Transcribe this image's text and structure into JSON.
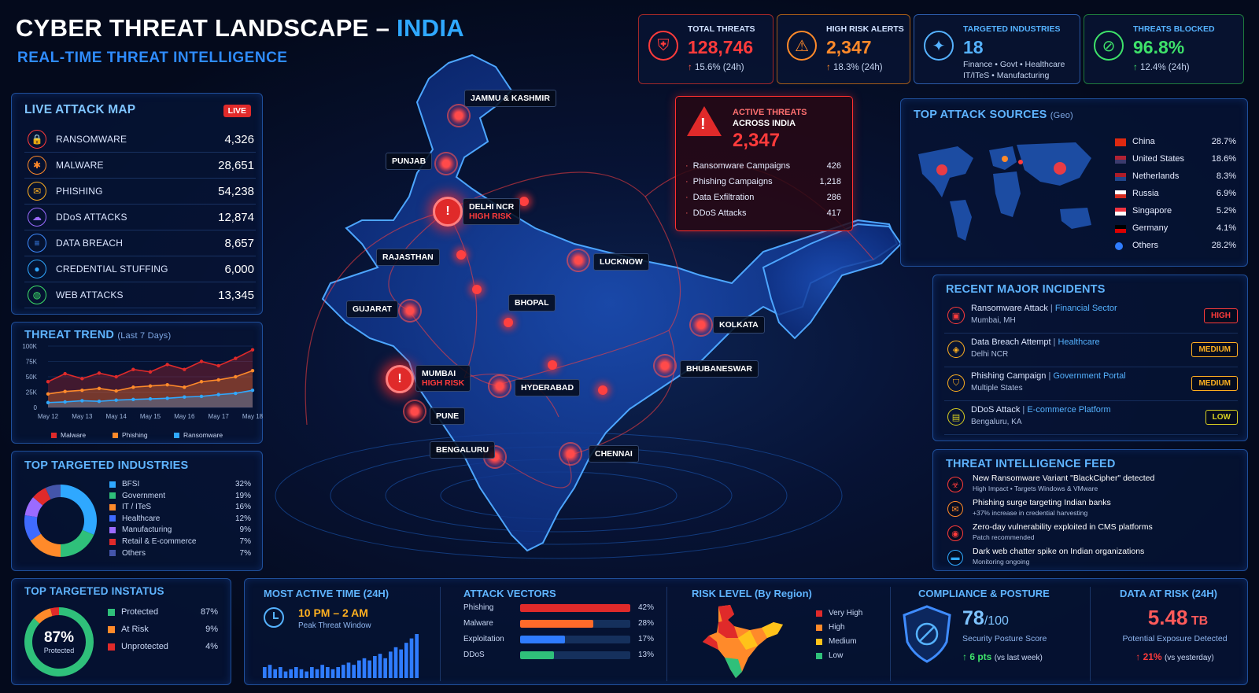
{
  "header": {
    "title": "CYBER THREAT LANDSCAPE –",
    "title_accent": "INDIA",
    "subtitle": "REAL-TIME THREAT INTELLIGENCE"
  },
  "kpis": [
    {
      "label": "TOTAL THREATS",
      "value": "128,746",
      "delta": "15.6% (24h)",
      "color": "#ff3b3b",
      "icon": "shield-alert-icon"
    },
    {
      "label": "HIGH RISK ALERTS",
      "value": "2,347",
      "delta": "18.3% (24h)",
      "color": "#ff8a2a",
      "icon": "alarm-bell-icon"
    },
    {
      "label": "TARGETED INDUSTRIES",
      "value": "18",
      "detail1": "Finance  •  Govt  •  Healthcare",
      "detail2": "IT/ITeS  •  Manufacturing",
      "color": "#55b2ff",
      "icon": "network-users-icon"
    },
    {
      "label": "THREATS BLOCKED",
      "value": "96.8%",
      "delta": "12.4% (24h)",
      "color": "#3ee26a",
      "icon": "blocked-shield-icon"
    }
  ],
  "live_map": {
    "title": "LIVE ATTACK MAP",
    "live": "LIVE",
    "rows": [
      {
        "label": "RANSOMWARE",
        "value": "4,326",
        "icon": "lock-icon",
        "color": "#ff3b3b"
      },
      {
        "label": "MALWARE",
        "value": "28,651",
        "icon": "bug-icon",
        "color": "#ff8a2a"
      },
      {
        "label": "PHISHING",
        "value": "54,238",
        "icon": "envelope-icon",
        "color": "#ffb020"
      },
      {
        "label": "DDoS ATTACKS",
        "value": "12,874",
        "icon": "cloud-icon",
        "color": "#9b6bff"
      },
      {
        "label": "DATA BREACH",
        "value": "8,657",
        "icon": "database-icon",
        "color": "#3f8cff"
      },
      {
        "label": "CREDENTIAL STUFFING",
        "value": "6,000",
        "icon": "user-key-icon",
        "color": "#2fa8ff"
      },
      {
        "label": "WEB ATTACKS",
        "value": "13,345",
        "icon": "globe-icon",
        "color": "#3ee26a"
      }
    ]
  },
  "threat_trend": {
    "title": "THREAT TREND",
    "subtitle": "(Last 7 Days)"
  },
  "chart_data": {
    "type": "area",
    "title": "THREAT TREND (Last 7 Days)",
    "categories": [
      "May 12",
      "May 13",
      "May 14",
      "May 15",
      "May 16",
      "May 17",
      "May 18"
    ],
    "yticks": [
      "0",
      "25K",
      "50K",
      "75K",
      "100K"
    ],
    "ylim": [
      0,
      100000
    ],
    "x": [
      0,
      0.5,
      1,
      1.5,
      2,
      2.5,
      3,
      3.5,
      4,
      4.5,
      5,
      5.5,
      6
    ],
    "series": [
      {
        "name": "Malware",
        "color": "#e02a2a",
        "values": [
          42000,
          55000,
          47000,
          56000,
          50000,
          62000,
          58000,
          70000,
          62000,
          75000,
          68000,
          80000,
          94000
        ]
      },
      {
        "name": "Phishing",
        "color": "#ff8a2a",
        "values": [
          22000,
          26000,
          28000,
          31000,
          27000,
          33000,
          35000,
          37000,
          33000,
          42000,
          45000,
          50000,
          60000
        ]
      },
      {
        "name": "Ransomware",
        "color": "#2fa8ff",
        "values": [
          8000,
          9000,
          11000,
          10000,
          12000,
          13000,
          14000,
          15000,
          17000,
          18000,
          21000,
          23000,
          28000
        ]
      }
    ]
  },
  "industries": {
    "title": "TOP TARGETED INDUSTRIES",
    "items": [
      {
        "label": "BFSI",
        "pct": "32%",
        "value": 32,
        "color": "#2fa8ff"
      },
      {
        "label": "Government",
        "pct": "19%",
        "value": 19,
        "color": "#2fc07a"
      },
      {
        "label": "IT / ITeS",
        "pct": "16%",
        "value": 16,
        "color": "#ff8a2a"
      },
      {
        "label": "Healthcare",
        "pct": "12%",
        "value": 12,
        "color": "#3f6bff"
      },
      {
        "label": "Manufacturing",
        "pct": "9%",
        "value": 9,
        "color": "#9b6bff"
      },
      {
        "label": "Retail & E-commerce",
        "pct": "7%",
        "value": 7,
        "color": "#e02a2a"
      },
      {
        "label": "Others",
        "pct": "7%",
        "value": 7,
        "color": "#4455aa"
      }
    ]
  },
  "map_labels": {
    "jammu": "JAMMU & KASHMIR",
    "punjab": "PUNJAB",
    "delhi": "DELHI NCR",
    "high_risk": "HIGH RISK",
    "rajasthan": "RAJASTHAN",
    "lucknow": "LUCKNOW",
    "gujarat": "GUJARAT",
    "bhopal": "BHOPAL",
    "kolkata": "KOLKATA",
    "mumbai": "MUMBAI",
    "bhubaneswar": "BHUBANESWAR",
    "hyderabad": "HYDERABAD",
    "pune": "PUNE",
    "bengaluru": "BENGALURU",
    "chennai": "CHENNAI"
  },
  "active_threats": {
    "title1": "ACTIVE THREATS",
    "title2": "ACROSS INDIA",
    "value": "2,347",
    "rows": [
      {
        "label": "Ransomware Campaigns",
        "value": "426"
      },
      {
        "label": "Phishing Campaigns",
        "value": "1,218"
      },
      {
        "label": "Data Exfiltration",
        "value": "286"
      },
      {
        "label": "DDoS Attacks",
        "value": "417"
      }
    ]
  },
  "attack_sources": {
    "title": "TOP ATTACK SOURCES",
    "subtitle": "(Geo)",
    "rows": [
      {
        "country": "China",
        "pct": "28.7%",
        "flag": "china-flag-icon"
      },
      {
        "country": "United States",
        "pct": "18.6%",
        "flag": "usa-flag-icon"
      },
      {
        "country": "Netherlands",
        "pct": "8.3%",
        "flag": "netherlands-flag-icon"
      },
      {
        "country": "Russia",
        "pct": "6.9%",
        "flag": "russia-flag-icon"
      },
      {
        "country": "Singapore",
        "pct": "5.2%",
        "flag": "singapore-flag-icon"
      },
      {
        "country": "Germany",
        "pct": "4.1%",
        "flag": "germany-flag-icon"
      },
      {
        "country": "Others",
        "pct": "28.2%",
        "flag": "globe-icon"
      }
    ]
  },
  "incidents": {
    "title": "RECENT MAJOR INCIDENTS",
    "rows": [
      {
        "title": "Ransomware Attack",
        "category": "Financial Sector",
        "loc": "Mumbai, MH",
        "level": "HIGH",
        "color": "#ff3b3b"
      },
      {
        "title": "Data Breach Attempt",
        "category": "Healthcare",
        "loc": "Delhi NCR",
        "level": "MEDIUM",
        "color": "#ffb020"
      },
      {
        "title": "Phishing Campaign",
        "category": "Government Portal",
        "loc": "Multiple States",
        "level": "MEDIUM",
        "color": "#ffb020"
      },
      {
        "title": "DDoS Attack",
        "category": "E-commerce Platform",
        "loc": "Bengaluru, KA",
        "level": "LOW",
        "color": "#d8d020"
      }
    ]
  },
  "feed": {
    "title": "THREAT INTELLIGENCE FEED",
    "rows": [
      {
        "title": "New Ransomware Variant  \"BlackCipher\"  detected",
        "sub": "High Impact  •  Targets Windows & VMware",
        "color": "#ff3b3b",
        "icon": "biohazard-icon"
      },
      {
        "title": "Phishing surge targeting Indian banks",
        "sub": "+37% increase in credential harvesting",
        "color": "#ff8a2a",
        "icon": "envelope-icon"
      },
      {
        "title": "Zero-day vulnerability exploited in CMS platforms",
        "sub": "Patch recommended",
        "color": "#ff3b3b",
        "icon": "eye-icon"
      },
      {
        "title": "Dark web chatter spike on Indian organizations",
        "sub": "Monitoring ongoing",
        "color": "#2fa8ff",
        "icon": "chat-icon"
      }
    ]
  },
  "status": {
    "title": "TOP TARGETED INSTATUS",
    "center_value": "87%",
    "center_label": "Protected",
    "rows": [
      {
        "label": "Protected",
        "pct": "87%",
        "value": 87,
        "color": "#2fc07a"
      },
      {
        "label": "At Risk",
        "pct": "9%",
        "value": 9,
        "color": "#ff8a2a"
      },
      {
        "label": "Unprotected",
        "pct": "4%",
        "value": 4,
        "color": "#e02a2a"
      }
    ]
  },
  "active_time": {
    "title": "MOST ACTIVE TIME (24H)",
    "value": "10 PM – 2 AM",
    "sub": "Peak Threat Window",
    "bars": [
      5,
      6,
      4,
      5,
      3,
      4,
      5,
      4,
      3,
      5,
      4,
      6,
      5,
      4,
      5,
      6,
      7,
      6,
      8,
      9,
      8,
      10,
      11,
      9,
      12,
      14,
      13,
      16,
      18,
      20
    ]
  },
  "vectors": {
    "title": "ATTACK VECTORS",
    "rows": [
      {
        "label": "Phishing",
        "pct": "42%",
        "value": 42,
        "color": "#e02a2a"
      },
      {
        "label": "Malware",
        "pct": "28%",
        "value": 28,
        "color": "#ff6a2a"
      },
      {
        "label": "Exploitation",
        "pct": "17%",
        "value": 17,
        "color": "#2f7cff"
      },
      {
        "label": "DDoS",
        "pct": "13%",
        "value": 13,
        "color": "#2fc07a"
      }
    ]
  },
  "risk": {
    "title": "RISK LEVEL (By Region)",
    "rows": [
      {
        "label": "Very High",
        "color": "#e02a2a"
      },
      {
        "label": "High",
        "color": "#ff8a2a"
      },
      {
        "label": "Medium",
        "color": "#ffc21a"
      },
      {
        "label": "Low",
        "color": "#2fc07a"
      }
    ]
  },
  "compliance": {
    "title": "COMPLIANCE & POSTURE",
    "value": "78",
    "denom": "/100",
    "label": "Security Posture Score",
    "delta": "6 pts",
    "delta_suffix": "(vs last week)"
  },
  "data_risk": {
    "title": "DATA AT RISK (24H)",
    "value": "5.48",
    "unit": "TB",
    "label": "Potential Exposure Detected",
    "delta": "21%",
    "delta_suffix": "(vs yesterday)"
  }
}
